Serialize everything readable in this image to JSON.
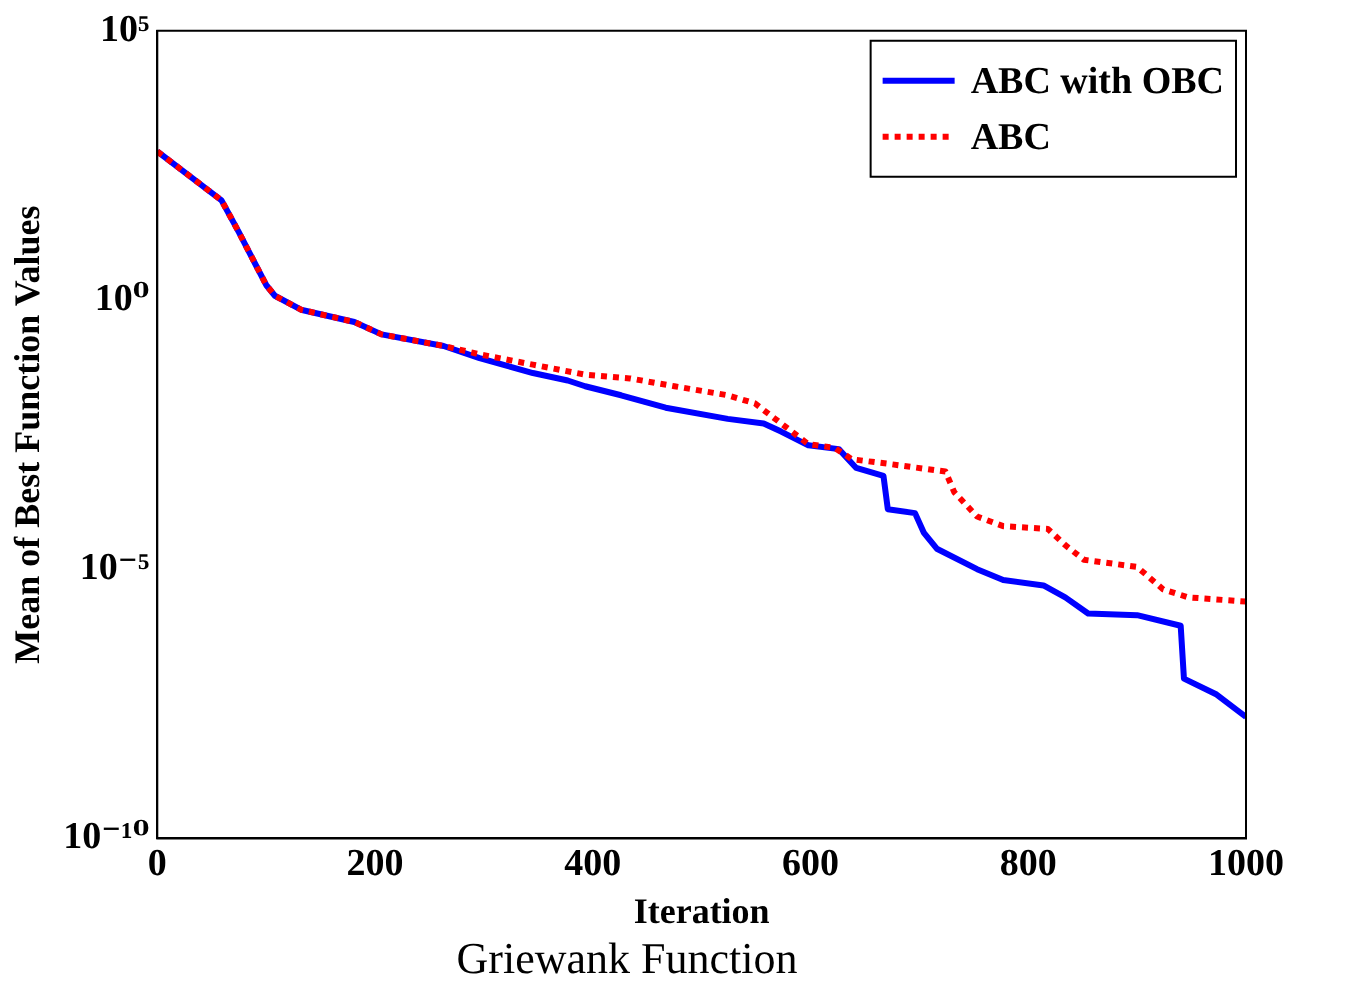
{
  "chart_data": {
    "type": "line",
    "title": "Griewank Function",
    "xlabel": "Iteration",
    "ylabel": "Mean of Best Function Values",
    "log": "y",
    "xlim": [
      0,
      1000
    ],
    "xticks": [
      0,
      200,
      400,
      600,
      800,
      1000
    ],
    "ylim": [
      1e-10,
      100000
    ],
    "yticks": [
      {
        "value": 1e-10,
        "label": "10⁻¹⁰"
      },
      {
        "value": 1e-05,
        "label": "10⁻⁵"
      },
      {
        "value": 1,
        "label": "10⁰"
      },
      {
        "value": 100000,
        "label": "10⁵"
      }
    ],
    "grid": false,
    "legend": "top right",
    "marker": "none",
    "series": [
      {
        "name": "ABC with OBC",
        "color": "#0000ff",
        "line_style": "solid",
        "x": [
          0,
          59,
          75,
          100,
          108,
          132,
          181,
          206,
          263,
          296,
          345,
          377,
          393,
          426,
          467,
          524,
          557,
          573,
          598,
          626,
          642,
          667,
          671,
          696,
          704,
          716,
          753,
          777,
          814,
          834,
          855,
          900,
          940,
          943,
          973,
          1000
        ],
        "values": [
          575,
          71,
          18,
          1.9,
          1.2,
          0.66,
          0.39,
          0.23,
          0.14,
          0.083,
          0.044,
          0.032,
          0.025,
          0.017,
          0.01,
          0.0062,
          0.0051,
          0.0036,
          0.002,
          0.0017,
          0.00076,
          0.00054,
          0.00013,
          0.00011,
          4.8e-05,
          2.4e-05,
          1e-05,
          6.3e-06,
          5e-06,
          3e-06,
          1.5e-06,
          1.4e-06,
          8.9e-07,
          9.3e-08,
          4.7e-08,
          1.8e-08
        ]
      },
      {
        "name": "ABC",
        "color": "#ff0000",
        "line_style": "dotted",
        "x": [
          0,
          59,
          75,
          100,
          108,
          132,
          181,
          206,
          263,
          296,
          345,
          393,
          434,
          475,
          524,
          549,
          573,
          598,
          622,
          638,
          671,
          724,
          732,
          753,
          777,
          818,
          834,
          851,
          900,
          924,
          947,
          1000
        ],
        "values": [
          575,
          71,
          18,
          1.9,
          1.2,
          0.66,
          0.39,
          0.23,
          0.14,
          0.098,
          0.063,
          0.041,
          0.035,
          0.025,
          0.017,
          0.012,
          0.0051,
          0.0021,
          0.0018,
          0.0011,
          0.00091,
          0.00065,
          0.00027,
          9.5e-05,
          6.3e-05,
          5.6e-05,
          2.8e-05,
          1.5e-05,
          1.1e-05,
          4.2e-06,
          3e-06,
          2.5e-06
        ]
      }
    ]
  }
}
